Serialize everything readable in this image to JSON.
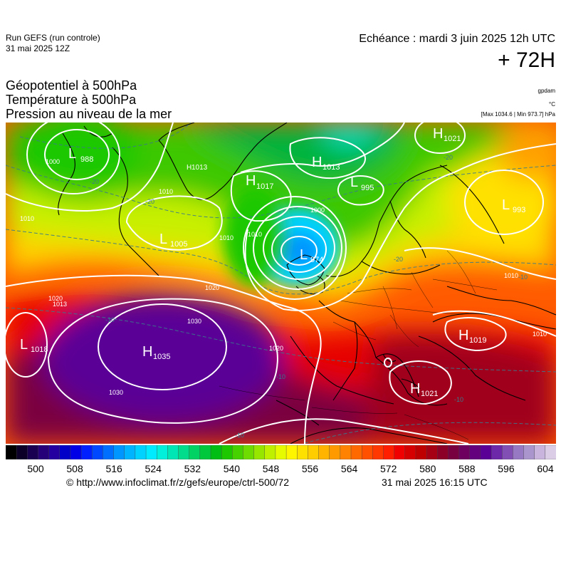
{
  "header": {
    "run_line1": "Run GEFS (run controle)",
    "run_line2": "31 mai 2025 12Z",
    "echeance": "Echéance : mardi 3 juin 2025 12h UTC",
    "lead": "+ 72H"
  },
  "params": {
    "line1": "Géopotentiel à 500hPa",
    "line2": "Température à 500hPa",
    "line3": "Pression au niveau de la mer",
    "unit1": "gpdam",
    "unit2": "°C",
    "unit3": "[Max 1034.6 | Min 973.7] hPa"
  },
  "colorbar": {
    "ticks": [
      "500",
      "508",
      "516",
      "524",
      "532",
      "540",
      "548",
      "556",
      "564",
      "572",
      "580",
      "588",
      "596",
      "604"
    ],
    "colors": [
      "#000000",
      "#0d0028",
      "#190050",
      "#260078",
      "#2400a0",
      "#0000c8",
      "#0000e6",
      "#0020ff",
      "#0048ff",
      "#006eff",
      "#0096ff",
      "#00b4ff",
      "#00d2ff",
      "#00ebff",
      "#00f0dc",
      "#00e6b4",
      "#00dc8c",
      "#00d264",
      "#00c83c",
      "#00be14",
      "#1ec800",
      "#46d200",
      "#6edc00",
      "#96e600",
      "#bef000",
      "#e6fa00",
      "#fff500",
      "#ffe100",
      "#ffcd00",
      "#ffb400",
      "#ff9b00",
      "#ff8200",
      "#ff6900",
      "#ff5000",
      "#ff3700",
      "#ff1e00",
      "#f00000",
      "#d70000",
      "#be0000",
      "#a50014",
      "#8c0028",
      "#780041",
      "#6e0060",
      "#64007d",
      "#5a0096",
      "#6c28a8",
      "#8250b4",
      "#9678c3",
      "#aa96cc",
      "#c8b4dc",
      "#dccde6"
    ]
  },
  "pressure_centers": [
    {
      "type": "L",
      "value": "988"
    },
    {
      "type": "H",
      "value": "1017"
    },
    {
      "type": "H",
      "value": "1013"
    },
    {
      "type": "H",
      "value": "1021"
    },
    {
      "type": "L",
      "value": "995"
    },
    {
      "type": "L",
      "value": "993"
    },
    {
      "type": "L",
      "value": "1005"
    },
    {
      "type": "L",
      "value": "974"
    },
    {
      "type": "L",
      "value": "1018"
    },
    {
      "type": "H",
      "value": "1035"
    },
    {
      "type": "H",
      "value": "1019"
    },
    {
      "type": "H",
      "value": "1021"
    },
    {
      "type": "H",
      "value": "1013"
    }
  ],
  "isobar_labels": [
    "1000",
    "1010",
    "1010",
    "1010",
    "1013",
    "1020",
    "1020",
    "1030",
    "1030",
    "1000",
    "1020",
    "1010",
    "1010",
    "1010"
  ],
  "temp_labels": [
    "-20",
    "-20",
    "-20",
    "-10",
    "-20",
    "-10",
    "-10",
    "-10",
    "-10"
  ],
  "footer": {
    "credit": "© http://www.infoclimat.fr/z/gefs/europe/ctrl-500/72",
    "timestamp": "31 mai 2025 16:15 UTC"
  }
}
